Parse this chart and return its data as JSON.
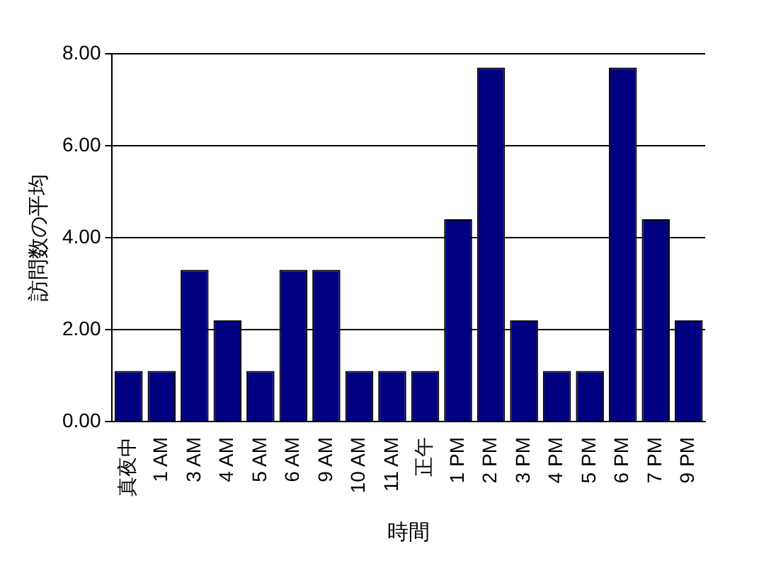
{
  "chart_data": {
    "type": "bar",
    "xlabel": "時間",
    "ylabel": "訪問数の平均",
    "categories": [
      "真夜中",
      "1 AM",
      "3 AM",
      "4 AM",
      "5 AM",
      "6 AM",
      "9 AM",
      "10 AM",
      "11 AM",
      "正午",
      "1 PM",
      "2 PM",
      "3 PM",
      "4 PM",
      "5 PM",
      "6 PM",
      "7 PM",
      "9 PM"
    ],
    "values": [
      1.1,
      1.1,
      3.3,
      2.2,
      1.1,
      3.3,
      3.3,
      1.1,
      1.1,
      1.1,
      4.4,
      7.7,
      2.2,
      1.1,
      1.1,
      7.7,
      4.4,
      2.2
    ],
    "color": "#000080",
    "ylim": [
      0,
      8
    ],
    "yticks": [
      {
        "value": 0,
        "label": "0.00"
      },
      {
        "value": 2,
        "label": "2.00"
      },
      {
        "value": 4,
        "label": "4.00"
      },
      {
        "value": 6,
        "label": "6.00"
      },
      {
        "value": 8,
        "label": "8.00"
      }
    ],
    "grid": "y",
    "legend": false
  }
}
